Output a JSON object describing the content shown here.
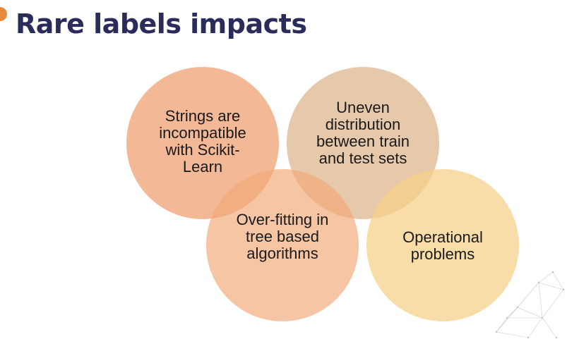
{
  "title": "Rare labels impacts",
  "colors": {
    "title": "#2a2d5c",
    "accent": "#e98a3b",
    "circle_1": "#ee9c6e",
    "circle_2": "#dcb286",
    "circle_3": "#f2aa78",
    "circle_4": "#f6d087"
  },
  "circles": [
    {
      "label": "Strings are incompatible with Scikit-Learn"
    },
    {
      "label": "Uneven distribution between train and test sets"
    },
    {
      "label": "Over-fitting in tree based algorithms"
    },
    {
      "label": "Operational problems"
    }
  ]
}
